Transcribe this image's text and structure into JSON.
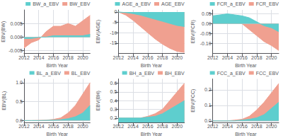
{
  "chart_data": [
    {
      "type": "area",
      "xlabel": "Birth Year",
      "ylabel": "EBV(BW)",
      "x": [
        2012,
        2013,
        2014,
        2015,
        2016,
        2017,
        2018,
        2019,
        2020,
        2021
      ],
      "series": [
        {
          "name": "BW_a_EBV",
          "color": "#5ecece",
          "values": [
            -0.0005,
            -0.0005,
            0,
            0,
            0.0005,
            0.0005,
            0.0005,
            0.0005,
            0.0005,
            0.001
          ]
        },
        {
          "name": "BW_EBV",
          "color": "#f0a090",
          "values": [
            -0.004,
            -0.002,
            -0.001,
            0.002,
            0.004,
            0.004,
            0.005,
            0.004,
            0.006,
            0.008
          ]
        }
      ],
      "xlim": [
        2012,
        2021
      ],
      "xticks": [
        2012,
        2014,
        2016,
        2018,
        2020
      ],
      "ylim": [
        -0.006,
        0.01
      ],
      "yticks": [
        -0.005,
        {
          "value": 0,
          "label": "0.000"
        },
        0.005
      ],
      "grid": true,
      "legend": "top"
    },
    {
      "type": "area",
      "xlabel": "Birth Year",
      "ylabel": "EBV(AGE)",
      "x": [
        2012,
        2013,
        2014,
        2015,
        2016,
        2017,
        2018,
        2019,
        2020,
        2021
      ],
      "series": [
        {
          "name": "AGE_a_EBV",
          "color": "#5ecece",
          "values": [
            0.0,
            -0.3,
            -0.8,
            -1.5,
            -2.5,
            -3.5,
            -4.5,
            -5.5,
            -6.5,
            -7.0
          ]
        },
        {
          "name": "AGE_EBV",
          "color": "#f0a090",
          "values": [
            0.0,
            -1.5,
            -4.0,
            -7.0,
            -10.0,
            -13.0,
            -15.5,
            -17.5,
            -19.0,
            -19.5
          ]
        }
      ],
      "xlim": [
        2012,
        2021
      ],
      "xticks": [
        2012,
        2014,
        2016,
        2018,
        2020
      ],
      "ylim": [
        -20,
        1
      ],
      "yticks": [
        -15,
        -10,
        -5,
        0
      ],
      "grid": true,
      "legend": "top"
    },
    {
      "type": "area",
      "xlabel": "Birth Year",
      "ylabel": "EBV(FCR)",
      "x": [
        2012,
        2013,
        2014,
        2015,
        2016,
        2017,
        2018,
        2019,
        2020,
        2021
      ],
      "series": [
        {
          "name": "FCR_a_EBV",
          "color": "#5ecece",
          "values": [
            0.04,
            0.045,
            0.05,
            0.045,
            0.04,
            0.03,
            0.01,
            -0.01,
            -0.02,
            -0.04
          ]
        },
        {
          "name": "FCR_EBV",
          "color": "#f0a090",
          "values": [
            0.04,
            0.04,
            0.045,
            0.03,
            0.0,
            -0.03,
            -0.06,
            -0.09,
            -0.11,
            -0.135
          ]
        }
      ],
      "xlim": [
        2012,
        2021
      ],
      "xticks": [
        2012,
        2014,
        2016,
        2018,
        2020
      ],
      "ylim": [
        -0.15,
        0.07
      ],
      "yticks": [
        {
          "value": -0.1,
          "label": "-0.10"
        },
        -0.05,
        {
          "value": 0,
          "label": "0.00"
        },
        0.05
      ],
      "grid": true,
      "legend": "top"
    },
    {
      "type": "area",
      "xlabel": "Birth Year",
      "ylabel": "EBV(BL)",
      "x": [
        2012,
        2013,
        2014,
        2015,
        2016,
        2017,
        2018,
        2019,
        2020,
        2021
      ],
      "series": [
        {
          "name": "BL_a_EBV",
          "color": "#5ecece",
          "values": [
            0.0,
            0.0,
            0.0,
            0.005,
            0.01,
            0.02,
            0.05,
            0.1,
            0.2,
            0.4
          ]
        },
        {
          "name": "BL_EBV",
          "color": "#f0a090",
          "values": [
            0.0,
            0.0,
            0.005,
            0.01,
            0.03,
            0.07,
            0.2,
            0.4,
            0.7,
            1.0
          ]
        }
      ],
      "xlim": [
        2012,
        2021
      ],
      "xticks": [
        2012,
        2014,
        2016,
        2018,
        2020
      ],
      "ylim": [
        -0.05,
        1.1
      ],
      "yticks": [
        {
          "value": 0,
          "label": "0.0"
        },
        0.5,
        {
          "value": 1,
          "label": "1.0"
        }
      ],
      "grid": true,
      "legend": "top"
    },
    {
      "type": "area",
      "xlabel": "Birth Year",
      "ylabel": "EBV(BH)",
      "x": [
        2012,
        2013,
        2014,
        2015,
        2016,
        2017,
        2018,
        2019,
        2020,
        2021
      ],
      "series": [
        {
          "name": "BH_a_EBV",
          "color": "#5ecece",
          "values": [
            0.2,
            0.2,
            0.2,
            0.2,
            0.21,
            0.22,
            0.25,
            0.3,
            0.35,
            0.4
          ]
        },
        {
          "name": "BH_EBV",
          "color": "#f0a090",
          "values": [
            0.2,
            0.2,
            0.2,
            0.2,
            0.22,
            0.25,
            0.3,
            0.4,
            0.5,
            0.6
          ]
        }
      ],
      "xlim": [
        2012,
        2021
      ],
      "xticks": [
        2012,
        2014,
        2016,
        2018,
        2020
      ],
      "ylim": [
        0.15,
        0.65
      ],
      "yticks": [
        0.2,
        0.3,
        0.4,
        0.5,
        0.6
      ],
      "grid": true,
      "legend": "top"
    },
    {
      "type": "area",
      "xlabel": "Birth Year",
      "ylabel": "EBV(FCC)",
      "x": [
        2012,
        2013,
        2014,
        2015,
        2016,
        2017,
        2018,
        2019,
        2020,
        2021
      ],
      "series": [
        {
          "name": "FCC_a_EBV",
          "color": "#5ecece",
          "values": [
            0.0,
            0.0,
            0.0,
            0.0,
            0.005,
            0.01,
            0.02,
            0.04,
            0.08,
            0.12
          ]
        },
        {
          "name": "FCC_EBV",
          "color": "#f0a090",
          "values": [
            0.0,
            0.0,
            0.0,
            0.005,
            0.01,
            0.03,
            0.07,
            0.12,
            0.18,
            0.24
          ]
        }
      ],
      "xlim": [
        2012,
        2021
      ],
      "xticks": [
        2012,
        2014,
        2016,
        2018,
        2020
      ],
      "ylim": [
        -0.01,
        0.27
      ],
      "yticks": [
        {
          "value": 0,
          "label": "0.0"
        },
        0.1,
        0.2
      ],
      "grid": true,
      "legend": "top"
    }
  ]
}
